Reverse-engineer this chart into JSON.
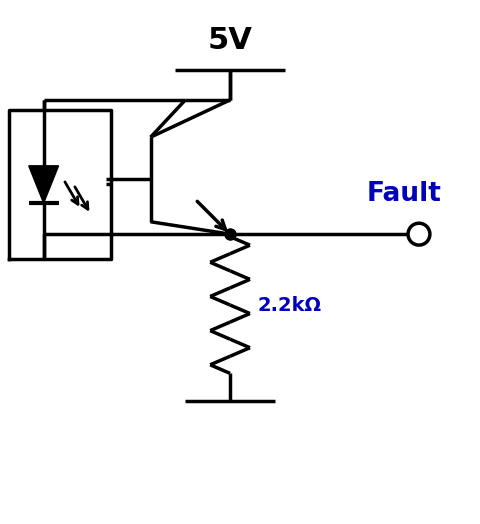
{
  "bg_color": "#ffffff",
  "line_color": "#000000",
  "text_color_5v": "#000000",
  "text_color_fault": "#0000bb",
  "text_color_res": "#0000bb",
  "lw": 2.5,
  "fig_width": 4.81,
  "fig_height": 5.24,
  "label_5v": "5V",
  "label_fault": "Fault",
  "label_res": "2.2kΩ"
}
